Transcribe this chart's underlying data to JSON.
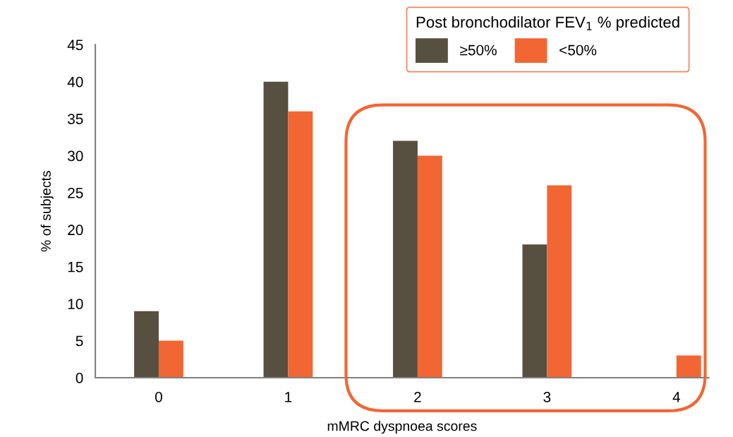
{
  "chart_data": {
    "type": "bar",
    "xlabel": "mMRC dyspnoea scores",
    "ylabel": "% of subjects",
    "legend_title": "Post bronchodilator FEV$_{1}$ % predicted",
    "categories": [
      "0",
      "1",
      "2",
      "3",
      "4"
    ],
    "series": [
      {
        "name": "≥50%",
        "color": "#574f40",
        "values": [
          9,
          40,
          32,
          18,
          0
        ]
      },
      {
        "name": "<50%",
        "color": "#f26634",
        "values": [
          5,
          36,
          30,
          26,
          3
        ]
      }
    ],
    "ylim": [
      0,
      45
    ],
    "yticks": [
      0,
      5,
      10,
      15,
      20,
      25,
      30,
      35,
      40,
      45
    ],
    "grid": false,
    "legend": "top right"
  }
}
